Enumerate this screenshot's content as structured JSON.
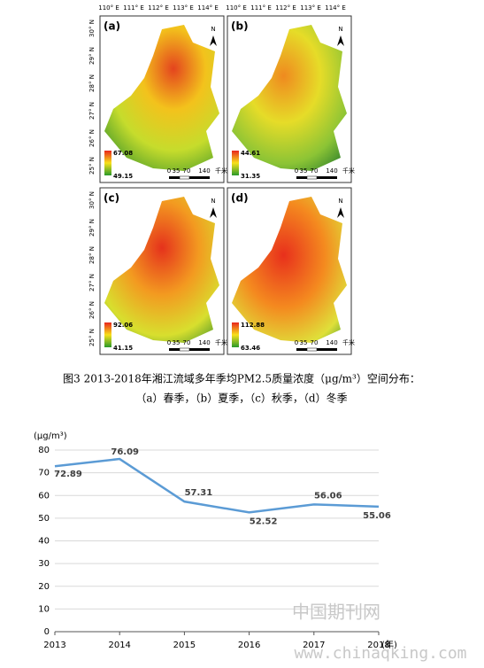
{
  "figure": {
    "panels": [
      {
        "label": "(a)",
        "max": "67.08",
        "min": "49.15"
      },
      {
        "label": "(b)",
        "max": "44.61",
        "min": "31.35"
      },
      {
        "label": "(c)",
        "max": "92.06",
        "min": "41.15"
      },
      {
        "label": "(d)",
        "max": "112.88",
        "min": "63.46"
      }
    ],
    "top_ticks": [
      "110° E",
      "111° E",
      "112° E",
      "113° E",
      "114° E"
    ],
    "left_ticks": [
      "30° N",
      "29° N",
      "28° N",
      "27° N",
      "26° N",
      "25° N"
    ],
    "scale_labels": [
      "0",
      "35",
      "70",
      "140",
      "千米"
    ],
    "north": "N"
  },
  "caption": [
    "图3 2013-2018年湘江流域多年季均PM2.5质量浓度（μg/m³）空间分布：",
    "（a）春季，（b）夏季，（c）秋季，（d）冬季"
  ],
  "chart_data": {
    "type": "line",
    "y_label": "(μg/m³)",
    "x_label": "(年)",
    "x": [
      2013,
      2014,
      2015,
      2016,
      2017,
      2018
    ],
    "series": [
      {
        "color": "#5b9bd5",
        "values": [
          72.89,
          76.09,
          57.31,
          52.52,
          56.06,
          55.06
        ]
      }
    ],
    "xlim": [
      2013,
      2018
    ],
    "xticks": [
      2013,
      2014,
      2015,
      2016,
      2017,
      2018
    ],
    "ylim": [
      0,
      80
    ],
    "yticks": [
      0,
      10,
      20,
      30,
      40,
      50,
      60,
      70,
      80
    ],
    "grid": true
  },
  "watermark": [
    "中国期刊网",
    "www.chinaqking.com"
  ]
}
